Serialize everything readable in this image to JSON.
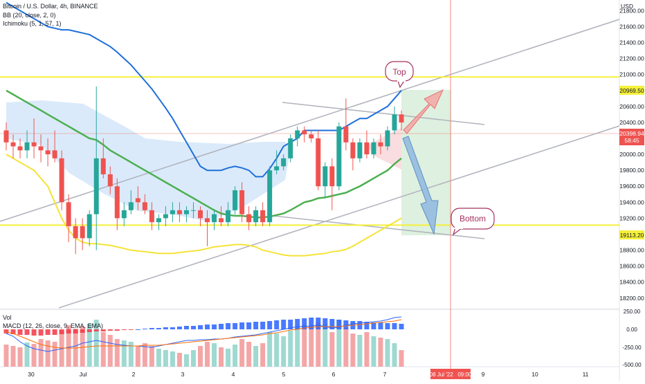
{
  "header": {
    "symbol_line": "Bitcoin / U.S. Dollar, 4h, BINANCE",
    "bb_line": "BB (20, close, 2, 0)",
    "ichimoku_line": "Ichimoku (5, 1, 57, 1)",
    "currency": "USD"
  },
  "lower_pane": {
    "vol_label": "Vol",
    "macd_label": "MACD (12, 26, close, 9, EMA, EMA)"
  },
  "annotations": {
    "top_label": "Top",
    "bottom_label": "Bottom"
  },
  "price_tags": {
    "upper_line_value": "20969.50",
    "lower_line_value": "19113.20",
    "current_price": "20398.94",
    "countdown": "58:45"
  },
  "time_cursor_label": "08 Jul '22   09:00",
  "colors": {
    "up_candle": "#26a69a",
    "down_candle": "#ef5350",
    "bb_upper": "#1e6fd9",
    "bb_basis": "#4caf50",
    "bb_lower": "#f5e337",
    "horizontal_level": "#f5f03a",
    "cloud": "#bcd8f5",
    "target_zone": "#c8e6c9",
    "red_cursor": "#f28b82"
  },
  "chart_data": {
    "type": "candlestick",
    "title": "Bitcoin / U.S. Dollar, 4h, BINANCE",
    "ylabel": "USD",
    "ylim": [
      18200,
      21900
    ],
    "y_ticks": [
      18200,
      18400,
      18600,
      18800,
      19000,
      19200,
      19400,
      19600,
      19800,
      20000,
      20200,
      20400,
      20600,
      20800,
      21000,
      21200,
      21400,
      21600,
      21800
    ],
    "x_labels": [
      "30",
      "Jul",
      "2",
      "3",
      "4",
      "5",
      "6",
      "7",
      "9",
      "10",
      "11"
    ],
    "candles": [
      {
        "o": 20300,
        "h": 20400,
        "c": 20150,
        "l": 20050
      },
      {
        "o": 20150,
        "h": 20250,
        "c": 20100,
        "l": 19950
      },
      {
        "o": 20100,
        "h": 20200,
        "c": 20050,
        "l": 19950
      },
      {
        "o": 20050,
        "h": 20300,
        "c": 20150,
        "l": 19950
      },
      {
        "o": 20150,
        "h": 20450,
        "c": 20100,
        "l": 19950
      },
      {
        "o": 20100,
        "h": 20250,
        "c": 20050,
        "l": 19900
      },
      {
        "o": 20050,
        "h": 20200,
        "c": 20000,
        "l": 19850
      },
      {
        "o": 20050,
        "h": 20300,
        "c": 19950,
        "l": 19900
      },
      {
        "o": 19950,
        "h": 20050,
        "c": 19400,
        "l": 19300
      },
      {
        "o": 19400,
        "h": 19500,
        "c": 19100,
        "l": 18900
      },
      {
        "o": 19100,
        "h": 19200,
        "c": 18950,
        "l": 18750
      },
      {
        "o": 19100,
        "h": 19200,
        "c": 18950,
        "l": 18800
      },
      {
        "o": 18950,
        "h": 19300,
        "c": 19250,
        "l": 18850
      },
      {
        "o": 19250,
        "h": 20850,
        "c": 19950,
        "l": 18800
      },
      {
        "o": 19950,
        "h": 20200,
        "c": 19750,
        "l": 19700
      },
      {
        "o": 19750,
        "h": 19850,
        "c": 19600,
        "l": 19500
      },
      {
        "o": 19600,
        "h": 19700,
        "c": 19200,
        "l": 19050
      },
      {
        "o": 19200,
        "h": 19400,
        "c": 19300,
        "l": 19100
      },
      {
        "o": 19300,
        "h": 19550,
        "c": 19400,
        "l": 19250
      },
      {
        "o": 19450,
        "h": 19600,
        "c": 19400,
        "l": 19300
      },
      {
        "o": 19400,
        "h": 19500,
        "c": 19300,
        "l": 19250
      },
      {
        "o": 19300,
        "h": 19400,
        "c": 19150,
        "l": 19050
      },
      {
        "o": 19150,
        "h": 19250,
        "c": 19200,
        "l": 19050
      },
      {
        "o": 19200,
        "h": 19350,
        "c": 19250,
        "l": 19100
      },
      {
        "o": 19250,
        "h": 19400,
        "c": 19300,
        "l": 19150
      },
      {
        "o": 19300,
        "h": 19400,
        "c": 19250,
        "l": 19150
      },
      {
        "o": 19250,
        "h": 19350,
        "c": 19300,
        "l": 19150
      },
      {
        "o": 19300,
        "h": 19400,
        "c": 19300,
        "l": 19200
      },
      {
        "o": 19300,
        "h": 19350,
        "c": 19200,
        "l": 19100
      },
      {
        "o": 19200,
        "h": 19300,
        "c": 19150,
        "l": 18850
      },
      {
        "o": 19150,
        "h": 19300,
        "c": 19250,
        "l": 19050
      },
      {
        "o": 19200,
        "h": 19350,
        "c": 19150,
        "l": 19100
      },
      {
        "o": 19150,
        "h": 19400,
        "c": 19300,
        "l": 19100
      },
      {
        "o": 19300,
        "h": 19600,
        "c": 19550,
        "l": 19250
      },
      {
        "o": 19550,
        "h": 19650,
        "c": 19250,
        "l": 19150
      },
      {
        "o": 19250,
        "h": 19350,
        "c": 19150,
        "l": 19050
      },
      {
        "o": 19150,
        "h": 19350,
        "c": 19300,
        "l": 19100
      },
      {
        "o": 19300,
        "h": 19400,
        "c": 19150,
        "l": 19100
      },
      {
        "o": 19150,
        "h": 19850,
        "c": 19800,
        "l": 19100
      },
      {
        "o": 19800,
        "h": 20050,
        "c": 19850,
        "l": 19750
      },
      {
        "o": 19850,
        "h": 20000,
        "c": 19950,
        "l": 19800
      },
      {
        "o": 19950,
        "h": 20250,
        "c": 20200,
        "l": 19900
      },
      {
        "o": 20200,
        "h": 20350,
        "c": 20300,
        "l": 20100
      },
      {
        "o": 20300,
        "h": 20350,
        "c": 20250,
        "l": 20150
      },
      {
        "o": 20250,
        "h": 20300,
        "c": 20200,
        "l": 20150
      },
      {
        "o": 20200,
        "h": 20300,
        "c": 19600,
        "l": 19550
      },
      {
        "o": 19600,
        "h": 19900,
        "c": 19850,
        "l": 19450
      },
      {
        "o": 19850,
        "h": 19950,
        "c": 19600,
        "l": 19300
      },
      {
        "o": 19600,
        "h": 20400,
        "c": 20350,
        "l": 19550
      },
      {
        "o": 20350,
        "h": 20700,
        "c": 20150,
        "l": 20050
      },
      {
        "o": 20150,
        "h": 20200,
        "c": 19950,
        "l": 19800
      },
      {
        "o": 19950,
        "h": 20200,
        "c": 20150,
        "l": 19900
      },
      {
        "o": 20150,
        "h": 20300,
        "c": 20000,
        "l": 19950
      },
      {
        "o": 20000,
        "h": 20200,
        "c": 20150,
        "l": 19950
      },
      {
        "o": 20150,
        "h": 20250,
        "c": 20100,
        "l": 20000
      },
      {
        "o": 20100,
        "h": 20350,
        "c": 20300,
        "l": 20050
      },
      {
        "o": 20300,
        "h": 20600,
        "c": 20500,
        "l": 20250
      },
      {
        "o": 20500,
        "h": 20550,
        "c": 20399,
        "l": 20300
      }
    ],
    "bb_upper": [
      21900,
      21850,
      21800,
      21750,
      21700,
      21650,
      21600,
      21580,
      21560,
      21560,
      21540,
      21520,
      21500,
      21450,
      21400,
      21350,
      21280,
      21200,
      21120,
      21020,
      20920,
      20820,
      20700,
      20580,
      20450,
      20300,
      20150,
      20000,
      19850,
      19800,
      19800,
      19800,
      19830,
      19850,
      19830,
      19800,
      19720,
      19720,
      19820,
      19950,
      20100,
      20150,
      20200,
      20300,
      20300,
      20300,
      20300,
      20300,
      20300,
      20350,
      20400,
      20450,
      20450,
      20500,
      20550,
      20600,
      20700,
      20800
    ],
    "bb_basis": [
      20800,
      20750,
      20700,
      20650,
      20600,
      20550,
      20500,
      20450,
      20400,
      20350,
      20300,
      20250,
      20200,
      20180,
      20120,
      20050,
      20000,
      19950,
      19900,
      19850,
      19800,
      19750,
      19700,
      19650,
      19600,
      19550,
      19500,
      19450,
      19400,
      19350,
      19300,
      19260,
      19240,
      19230,
      19230,
      19220,
      19210,
      19210,
      19220,
      19240,
      19260,
      19300,
      19350,
      19400,
      19420,
      19450,
      19460,
      19480,
      19500,
      19520,
      19560,
      19600,
      19650,
      19700,
      19750,
      19800,
      19880,
      19950
    ],
    "bb_lower": [
      20000,
      19950,
      19900,
      19850,
      19800,
      19700,
      19600,
      19400,
      19200,
      19050,
      18950,
      18900,
      18880,
      18880,
      18870,
      18860,
      18840,
      18820,
      18800,
      18790,
      18780,
      18770,
      18760,
      18760,
      18760,
      18770,
      18780,
      18790,
      18800,
      18820,
      18840,
      18850,
      18860,
      18870,
      18870,
      18860,
      18840,
      18800,
      18780,
      18760,
      18740,
      18730,
      18730,
      18730,
      18740,
      18750,
      18760,
      18780,
      18790,
      18810,
      18850,
      18900,
      18950,
      19000,
      19050,
      19100,
      19150,
      19200
    ],
    "upper_level": 20969.5,
    "lower_level": 19113.2,
    "current_price": 20398.94
  }
}
